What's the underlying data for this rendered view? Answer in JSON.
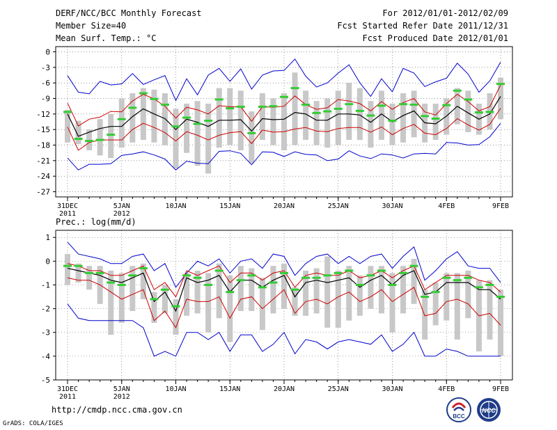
{
  "header": {
    "title": "DERF/NCC/BCC Monthly Forecast",
    "member_size": "Member Size=40",
    "var1_label": "Mean Surf. Temp.: °C",
    "period": "For 2012/01/01-2012/02/09",
    "start_ref": "Fcst Started Refer Date 2011/12/31",
    "produced": "Fcst Produced Date 2012/01/01"
  },
  "footer": {
    "url": "http://cmdp.ncc.cma.gov.cn",
    "grads": "GrADS: COLA/IGES",
    "logo_bcc_text": "BCC",
    "logo_ncc_text": "NCC"
  },
  "colors": {
    "mean": "#000000",
    "spread": "#cc0000",
    "envelope": "#0000cc",
    "bar": "#c8c8c8",
    "tick": "#33cc33"
  },
  "chart_data": [
    {
      "type": "line",
      "title": "Mean Surf. Temp.: °C",
      "x": [
        "31DEC 2011",
        "1JAN",
        "2JAN",
        "3JAN",
        "4JAN",
        "5JAN",
        "6JAN",
        "7JAN",
        "8JAN",
        "9JAN",
        "10JAN",
        "11JAN",
        "12JAN",
        "13JAN",
        "14JAN",
        "15JAN",
        "16JAN",
        "17JAN",
        "18JAN",
        "19JAN",
        "20JAN",
        "21JAN",
        "22JAN",
        "23JAN",
        "24JAN",
        "25JAN",
        "26JAN",
        "27JAN",
        "28JAN",
        "29JAN",
        "30JAN",
        "31JAN",
        "1FEB",
        "2FEB",
        "3FEB",
        "4FEB",
        "5FEB",
        "6FEB",
        "7FEB",
        "8FEB",
        "9FEB"
      ],
      "x_tick_labels": [
        {
          "index": 0,
          "line1": "31DEC",
          "line2": "2011"
        },
        {
          "index": 5,
          "line1": "5JAN",
          "line2": "2012"
        },
        {
          "index": 10,
          "line1": "10JAN",
          "line2": ""
        },
        {
          "index": 15,
          "line1": "15JAN",
          "line2": ""
        },
        {
          "index": 20,
          "line1": "20JAN",
          "line2": ""
        },
        {
          "index": 25,
          "line1": "25JAN",
          "line2": ""
        },
        {
          "index": 30,
          "line1": "30JAN",
          "line2": ""
        },
        {
          "index": 35,
          "line1": "4FEB",
          "line2": ""
        },
        {
          "index": 40,
          "line1": "9FEB",
          "line2": ""
        }
      ],
      "ylim": [
        -28,
        1
      ],
      "yticks": [
        0,
        -3,
        -6,
        -9,
        -12,
        -15,
        -18,
        -21,
        -24,
        -27
      ],
      "grid": true,
      "series": [
        {
          "name": "ensemble mean",
          "values": [
            -12.0,
            -16.3,
            -15.5,
            -14.8,
            -14.4,
            -14.4,
            -12.5,
            -11.0,
            -12.0,
            -12.9,
            -15.0,
            -13.0,
            -13.6,
            -14.4,
            -13.2,
            -13.2,
            -13.1,
            -15.3,
            -12.9,
            -13.1,
            -13.0,
            -11.7,
            -12.0,
            -13.2,
            -13.2,
            -12.0,
            -12.0,
            -12.2,
            -13.6,
            -12.0,
            -13.5,
            -12.3,
            -11.4,
            -13.7,
            -13.9,
            -12.4,
            -10.5,
            -11.8,
            -13.0,
            -12.0,
            -8.6
          ]
        },
        {
          "name": "mean + spread",
          "values": [
            -9.9,
            -14.3,
            -13.0,
            -12.6,
            -11.5,
            -11.6,
            -9.5,
            -8.2,
            -9.1,
            -10.5,
            -12.8,
            -10.7,
            -11.2,
            -12.0,
            -10.4,
            -10.6,
            -10.6,
            -13.4,
            -10.6,
            -10.7,
            -10.5,
            -8.5,
            -10.2,
            -11.1,
            -10.8,
            -9.2,
            -9.5,
            -10.0,
            -11.4,
            -9.6,
            -11.1,
            -9.8,
            -9.0,
            -11.6,
            -12.2,
            -10.0,
            -8.2,
            -9.6,
            -11.4,
            -10.6,
            -6.4
          ]
        },
        {
          "name": "mean - spread",
          "values": [
            -14.5,
            -19.0,
            -17.5,
            -17.0,
            -17.0,
            -17.0,
            -15.0,
            -13.8,
            -14.6,
            -15.6,
            -17.2,
            -15.4,
            -16.1,
            -17.0,
            -16.1,
            -15.6,
            -15.4,
            -17.7,
            -15.1,
            -15.5,
            -15.4,
            -14.9,
            -14.6,
            -15.3,
            -15.4,
            -14.8,
            -14.6,
            -14.6,
            -15.5,
            -14.5,
            -16.0,
            -14.8,
            -14.0,
            -15.7,
            -16.0,
            -14.8,
            -12.9,
            -14.1,
            -15.1,
            -14.0,
            -10.9
          ]
        },
        {
          "name": "ensemble max",
          "values": [
            -4.6,
            -7.8,
            -8.1,
            -5.7,
            -6.4,
            -6.2,
            -4.2,
            -6.3,
            -5.4,
            -4.6,
            -9.4,
            -5.2,
            -8.3,
            -4.5,
            -3.2,
            -5.7,
            -3.3,
            -7.2,
            -4.5,
            -3.7,
            -3.6,
            -1.4,
            -4.7,
            -6.8,
            -6.0,
            -4.1,
            -2.5,
            -6.0,
            -8.6,
            -5.2,
            -7.7,
            -3.2,
            -4.1,
            -6.7,
            -5.8,
            -5.1,
            -2.2,
            -4.3,
            -7.8,
            -5.6,
            -2.0
          ]
        },
        {
          "name": "ensemble min",
          "values": [
            -20.5,
            -22.8,
            -21.7,
            -21.7,
            -21.6,
            -20.0,
            -19.7,
            -19.3,
            -19.9,
            -20.7,
            -22.8,
            -21.1,
            -21.5,
            -21.6,
            -19.2,
            -19.1,
            -19.6,
            -21.8,
            -19.3,
            -19.4,
            -20.2,
            -19.3,
            -19.8,
            -19.9,
            -21.0,
            -20.7,
            -19.1,
            -20.1,
            -20.6,
            -19.7,
            -19.9,
            -20.5,
            -19.7,
            -19.6,
            -19.7,
            -17.5,
            -17.6,
            -18.0,
            -17.9,
            -16.4,
            -13.8
          ]
        },
        {
          "name": "bar top",
          "values": [
            -11.2,
            -13.3,
            -15.0,
            -13.0,
            -12.0,
            -9.0,
            -8.0,
            -7.0,
            -7.3,
            -8.0,
            -11.0,
            -10.0,
            -9.5,
            -10.0,
            -7.0,
            -7.0,
            -7.5,
            -11.5,
            -8.0,
            -9.0,
            -8.0,
            -4.0,
            -7.5,
            -9.5,
            -9.0,
            -7.5,
            -6.0,
            -7.0,
            -9.5,
            -7.5,
            -10.0,
            -8.0,
            -7.5,
            -10.0,
            -10.0,
            -9.0,
            -7.0,
            -7.5,
            -10.0,
            -8.0,
            -5.0
          ]
        },
        {
          "name": "bar bottom",
          "values": [
            -17.5,
            -17.8,
            -19.0,
            -20.0,
            -20.5,
            -18.5,
            -17.5,
            -17.0,
            -17.5,
            -18.0,
            -22.5,
            -19.5,
            -22.0,
            -23.5,
            -18.5,
            -18.0,
            -19.0,
            -21.5,
            -17.0,
            -18.0,
            -19.0,
            -18.0,
            -17.0,
            -18.0,
            -18.5,
            -18.0,
            -17.0,
            -17.0,
            -18.5,
            -17.0,
            -18.0,
            -17.5,
            -16.5,
            -17.5,
            -17.0,
            -16.0,
            -14.0,
            -15.5,
            -16.0,
            -15.0,
            -13.0
          ]
        },
        {
          "name": "observed/ref",
          "values": [
            -11.6,
            -16.8,
            -17.2,
            -17.0,
            -16.0,
            -13.0,
            -10.8,
            -8.0,
            -9.1,
            -10.2,
            -14.4,
            -12.7,
            -13.9,
            -13.3,
            -9.2,
            -10.9,
            -10.6,
            -15.7,
            -10.6,
            -10.5,
            -8.7,
            -7.0,
            -10.2,
            -11.8,
            -11.5,
            -11.0,
            -10.1,
            -11.4,
            -12.3,
            -10.4,
            -13.3,
            -10.1,
            -10.2,
            -12.4,
            -12.9,
            -10.3,
            -7.5,
            -9.2,
            -11.7,
            -11.6,
            -6.2
          ]
        }
      ]
    },
    {
      "type": "line",
      "title": "Prec.: log(mm/d)",
      "x": [
        "31DEC 2011",
        "1JAN",
        "2JAN",
        "3JAN",
        "4JAN",
        "5JAN",
        "6JAN",
        "7JAN",
        "8JAN",
        "9JAN",
        "10JAN",
        "11JAN",
        "12JAN",
        "13JAN",
        "14JAN",
        "15JAN",
        "16JAN",
        "17JAN",
        "18JAN",
        "19JAN",
        "20JAN",
        "21JAN",
        "22JAN",
        "23JAN",
        "24JAN",
        "25JAN",
        "26JAN",
        "27JAN",
        "28JAN",
        "29JAN",
        "30JAN",
        "31JAN",
        "1FEB",
        "2FEB",
        "3FEB",
        "4FEB",
        "5FEB",
        "6FEB",
        "7FEB",
        "8FEB",
        "9FEB"
      ],
      "x_tick_labels": [
        {
          "index": 0,
          "line1": "31DEC",
          "line2": "2011"
        },
        {
          "index": 5,
          "line1": "5JAN",
          "line2": "2012"
        },
        {
          "index": 10,
          "line1": "10JAN",
          "line2": ""
        },
        {
          "index": 15,
          "line1": "15JAN",
          "line2": ""
        },
        {
          "index": 20,
          "line1": "20JAN",
          "line2": ""
        },
        {
          "index": 25,
          "line1": "25JAN",
          "line2": ""
        },
        {
          "index": 30,
          "line1": "30JAN",
          "line2": ""
        },
        {
          "index": 35,
          "line1": "4FEB",
          "line2": ""
        },
        {
          "index": 40,
          "line1": "9FEB",
          "line2": ""
        }
      ],
      "ylim": [
        -5,
        1.3
      ],
      "yticks": [
        1,
        0,
        -1,
        -2,
        -3,
        -4,
        -5
      ],
      "grid": true,
      "series": [
        {
          "name": "ensemble mean",
          "values": [
            -0.3,
            -0.4,
            -0.5,
            -0.6,
            -0.8,
            -0.9,
            -0.7,
            -0.5,
            -1.7,
            -1.3,
            -2.1,
            -0.7,
            -0.9,
            -0.8,
            -0.6,
            -1.3,
            -0.8,
            -0.8,
            -1.1,
            -0.8,
            -0.6,
            -1.5,
            -0.9,
            -0.8,
            -0.9,
            -0.8,
            -0.7,
            -1.1,
            -0.8,
            -0.6,
            -1.0,
            -0.6,
            -0.4,
            -1.4,
            -1.3,
            -0.9,
            -0.9,
            -0.9,
            -1.2,
            -1.2,
            -1.6
          ]
        },
        {
          "name": "mean + spread",
          "values": [
            -0.1,
            -0.2,
            -0.4,
            -0.4,
            -0.6,
            -0.6,
            -0.4,
            -0.2,
            -1.2,
            -0.9,
            -1.5,
            -0.4,
            -0.6,
            -0.4,
            -0.2,
            -0.9,
            -0.5,
            -0.5,
            -0.8,
            -0.5,
            -0.4,
            -1.1,
            -0.6,
            -0.5,
            -0.6,
            -0.6,
            -0.4,
            -0.7,
            -0.6,
            -0.4,
            -0.7,
            -0.4,
            -0.2,
            -1.2,
            -0.9,
            -0.6,
            -0.6,
            -0.6,
            -0.8,
            -0.9,
            -1.3
          ]
        },
        {
          "name": "mean - spread",
          "values": [
            -0.7,
            -0.8,
            -0.8,
            -1.0,
            -1.3,
            -1.6,
            -1.4,
            -1.2,
            -2.5,
            -2.1,
            -2.8,
            -1.6,
            -1.7,
            -1.7,
            -1.5,
            -2.4,
            -1.6,
            -1.5,
            -2.0,
            -1.6,
            -1.2,
            -2.2,
            -1.7,
            -1.6,
            -1.8,
            -1.5,
            -1.3,
            -1.7,
            -1.5,
            -1.2,
            -1.7,
            -1.4,
            -1.1,
            -2.3,
            -2.2,
            -1.7,
            -1.6,
            -1.8,
            -2.3,
            -2.2,
            -2.7
          ]
        },
        {
          "name": "ensemble max",
          "values": [
            0.8,
            0.3,
            0.2,
            0.1,
            -0.1,
            -0.1,
            0.2,
            0.3,
            -0.4,
            -0.1,
            -1.1,
            -0.5,
            0.0,
            -0.2,
            0.1,
            -0.5,
            0.0,
            0.1,
            -0.3,
            0.3,
            0.2,
            -0.6,
            -0.1,
            0.2,
            0.3,
            -0.1,
            0.2,
            -0.1,
            0.2,
            0.3,
            -0.3,
            0.2,
            0.6,
            -0.8,
            -0.4,
            0.1,
            0.4,
            -0.2,
            -0.3,
            -0.3,
            -0.9
          ]
        },
        {
          "name": "ensemble min",
          "values": [
            -1.8,
            -2.4,
            -2.5,
            -2.5,
            -2.5,
            -2.5,
            -2.5,
            -2.8,
            -4.0,
            -3.8,
            -4.0,
            -3.0,
            -3.0,
            -3.3,
            -3.0,
            -3.8,
            -3.1,
            -3.1,
            -3.8,
            -3.5,
            -3.0,
            -3.9,
            -3.3,
            -3.4,
            -3.7,
            -3.4,
            -3.3,
            -3.4,
            -3.5,
            -3.1,
            -3.8,
            -3.5,
            -3.0,
            -4.0,
            -4.0,
            -3.7,
            -3.8,
            -4.0,
            -4.0,
            -4.0,
            -4.0
          ]
        },
        {
          "name": "bar top",
          "values": [
            0.3,
            -0.1,
            -0.2,
            -0.2,
            -0.4,
            -0.5,
            -0.2,
            -0.1,
            -1.3,
            -1.0,
            -1.6,
            -0.5,
            -0.4,
            -0.5,
            -0.1,
            -0.6,
            -0.2,
            -0.3,
            -0.7,
            -0.2,
            -0.1,
            -1.1,
            -0.4,
            -0.3,
            0.2,
            -0.4,
            -0.2,
            -0.6,
            -0.2,
            -0.2,
            -0.5,
            -0.2,
            0.1,
            -1.2,
            -0.9,
            -0.5,
            -0.5,
            -0.4,
            -0.8,
            -0.8,
            -1.2
          ]
        },
        {
          "name": "bar bottom",
          "values": [
            -1.0,
            -0.9,
            -1.2,
            -1.8,
            -3.1,
            -2.6,
            -2.1,
            -1.6,
            -2.6,
            -2.2,
            -3.1,
            -2.3,
            -2.2,
            -3.0,
            -2.4,
            -3.4,
            -2.1,
            -2.1,
            -2.9,
            -2.2,
            -2.0,
            -2.3,
            -2.3,
            -2.2,
            -2.8,
            -2.8,
            -2.5,
            -2.3,
            -2.0,
            -2.2,
            -3.0,
            -2.2,
            -1.8,
            -3.3,
            -2.7,
            -2.5,
            -3.3,
            -2.4,
            -3.8,
            -3.3,
            -4.0
          ]
        },
        {
          "name": "observed/ref",
          "values": [
            -0.2,
            -0.2,
            -0.5,
            -0.5,
            -0.9,
            -1.0,
            -0.6,
            -0.3,
            -1.6,
            -1.2,
            -1.9,
            -0.6,
            -0.7,
            -1.0,
            -0.4,
            -1.3,
            -0.8,
            -0.6,
            -1.1,
            -0.9,
            -0.5,
            -1.2,
            -0.7,
            -0.7,
            -0.6,
            -0.5,
            -0.4,
            -1.0,
            -0.6,
            -0.4,
            -1.0,
            -0.5,
            -0.2,
            -1.5,
            -1.3,
            -0.7,
            -0.8,
            -0.7,
            -1.1,
            -1.0,
            -1.5
          ]
        }
      ]
    }
  ]
}
